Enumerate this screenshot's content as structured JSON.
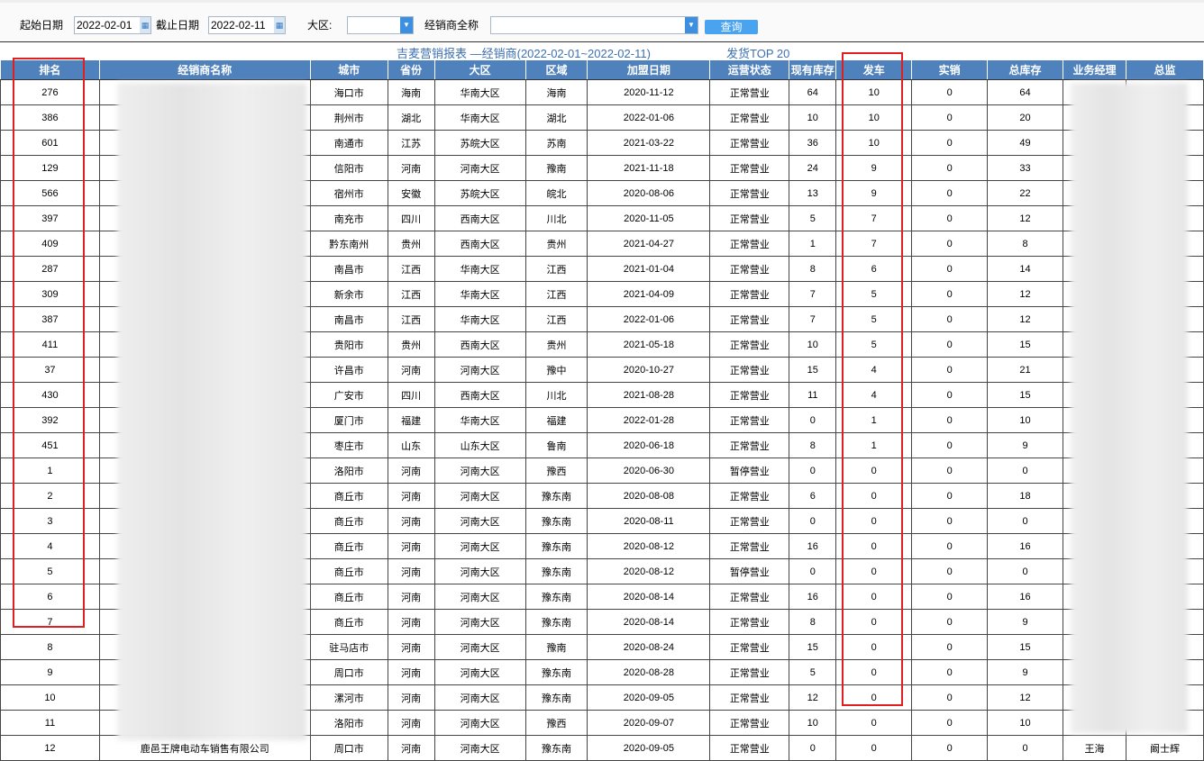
{
  "toolbar": {
    "start_label": "起始日期",
    "start_value": "2022-02-01",
    "end_label": "截止日期",
    "end_value": "2022-02-11",
    "region_label": "大区:",
    "region_value": "",
    "dealer_label": "经销商全称",
    "dealer_value": "",
    "query_button": "查询"
  },
  "report": {
    "title": "吉麦营销报表 —经销商(2022-02-01~2022-02-11)",
    "subtitle": "发货TOP 20"
  },
  "columns": [
    "排名",
    "经销商名称",
    "城市",
    "省份",
    "大区",
    "区域",
    "加盟日期",
    "运营状态",
    "现有库存",
    "发车",
    "实销",
    "总库存",
    "业务经理",
    "总监"
  ],
  "rows": [
    [
      "276",
      "",
      "海口市",
      "海南",
      "华南大区",
      "海南",
      "2020-11-12",
      "正常营业",
      "64",
      "10",
      "0",
      "64",
      "",
      ""
    ],
    [
      "386",
      "",
      "荆州市",
      "湖北",
      "华南大区",
      "湖北",
      "2022-01-06",
      "正常营业",
      "10",
      "10",
      "0",
      "20",
      "",
      ""
    ],
    [
      "601",
      "",
      "南通市",
      "江苏",
      "苏皖大区",
      "苏南",
      "2021-03-22",
      "正常营业",
      "36",
      "10",
      "0",
      "49",
      "",
      ""
    ],
    [
      "129",
      "",
      "信阳市",
      "河南",
      "河南大区",
      "豫南",
      "2021-11-18",
      "正常营业",
      "24",
      "9",
      "0",
      "33",
      "",
      ""
    ],
    [
      "566",
      "",
      "宿州市",
      "安徽",
      "苏皖大区",
      "皖北",
      "2020-08-06",
      "正常营业",
      "13",
      "9",
      "0",
      "22",
      "",
      ""
    ],
    [
      "397",
      "",
      "南充市",
      "四川",
      "西南大区",
      "川北",
      "2020-11-05",
      "正常营业",
      "5",
      "7",
      "0",
      "12",
      "",
      ""
    ],
    [
      "409",
      "",
      "黔东南州",
      "贵州",
      "西南大区",
      "贵州",
      "2021-04-27",
      "正常营业",
      "1",
      "7",
      "0",
      "8",
      "",
      ""
    ],
    [
      "287",
      "",
      "南昌市",
      "江西",
      "华南大区",
      "江西",
      "2021-01-04",
      "正常营业",
      "8",
      "6",
      "0",
      "14",
      "",
      ""
    ],
    [
      "309",
      "",
      "新余市",
      "江西",
      "华南大区",
      "江西",
      "2021-04-09",
      "正常营业",
      "7",
      "5",
      "0",
      "12",
      "",
      ""
    ],
    [
      "387",
      "",
      "南昌市",
      "江西",
      "华南大区",
      "江西",
      "2022-01-06",
      "正常营业",
      "7",
      "5",
      "0",
      "12",
      "",
      ""
    ],
    [
      "411",
      "",
      "贵阳市",
      "贵州",
      "西南大区",
      "贵州",
      "2021-05-18",
      "正常营业",
      "10",
      "5",
      "0",
      "15",
      "",
      ""
    ],
    [
      "37",
      "",
      "许昌市",
      "河南",
      "河南大区",
      "豫中",
      "2020-10-27",
      "正常营业",
      "15",
      "4",
      "0",
      "21",
      "",
      ""
    ],
    [
      "430",
      "",
      "广安市",
      "四川",
      "西南大区",
      "川北",
      "2021-08-28",
      "正常营业",
      "11",
      "4",
      "0",
      "15",
      "",
      ""
    ],
    [
      "392",
      "",
      "厦门市",
      "福建",
      "华南大区",
      "福建",
      "2022-01-28",
      "正常营业",
      "0",
      "1",
      "0",
      "10",
      "",
      ""
    ],
    [
      "451",
      "",
      "枣庄市",
      "山东",
      "山东大区",
      "鲁南",
      "2020-06-18",
      "正常营业",
      "8",
      "1",
      "0",
      "9",
      "",
      ""
    ],
    [
      "1",
      "",
      "洛阳市",
      "河南",
      "河南大区",
      "豫西",
      "2020-06-30",
      "暂停营业",
      "0",
      "0",
      "0",
      "0",
      "",
      ""
    ],
    [
      "2",
      "",
      "商丘市",
      "河南",
      "河南大区",
      "豫东南",
      "2020-08-08",
      "正常营业",
      "6",
      "0",
      "0",
      "18",
      "",
      ""
    ],
    [
      "3",
      "",
      "商丘市",
      "河南",
      "河南大区",
      "豫东南",
      "2020-08-11",
      "正常营业",
      "0",
      "0",
      "0",
      "0",
      "",
      ""
    ],
    [
      "4",
      "",
      "商丘市",
      "河南",
      "河南大区",
      "豫东南",
      "2020-08-12",
      "正常营业",
      "16",
      "0",
      "0",
      "16",
      "",
      ""
    ],
    [
      "5",
      "",
      "商丘市",
      "河南",
      "河南大区",
      "豫东南",
      "2020-08-12",
      "暂停营业",
      "0",
      "0",
      "0",
      "0",
      "",
      ""
    ],
    [
      "6",
      "",
      "商丘市",
      "河南",
      "河南大区",
      "豫东南",
      "2020-08-14",
      "正常营业",
      "16",
      "0",
      "0",
      "16",
      "",
      ""
    ],
    [
      "7",
      "",
      "商丘市",
      "河南",
      "河南大区",
      "豫东南",
      "2020-08-14",
      "正常营业",
      "8",
      "0",
      "0",
      "9",
      "",
      ""
    ],
    [
      "8",
      "",
      "驻马店市",
      "河南",
      "河南大区",
      "豫南",
      "2020-08-24",
      "正常营业",
      "15",
      "0",
      "0",
      "15",
      "",
      ""
    ],
    [
      "9",
      "",
      "周口市",
      "河南",
      "河南大区",
      "豫东南",
      "2020-08-28",
      "正常营业",
      "5",
      "0",
      "0",
      "9",
      "",
      ""
    ],
    [
      "10",
      "",
      "漯河市",
      "河南",
      "河南大区",
      "豫东南",
      "2020-09-05",
      "正常营业",
      "12",
      "0",
      "0",
      "12",
      "",
      ""
    ],
    [
      "11",
      "",
      "洛阳市",
      "河南",
      "河南大区",
      "豫西",
      "2020-09-07",
      "正常营业",
      "10",
      "0",
      "0",
      "10",
      "",
      ""
    ],
    [
      "12",
      "鹿邑王牌电动车销售有限公司",
      "周口市",
      "河南",
      "河南大区",
      "豫东南",
      "2020-09-05",
      "正常营业",
      "0",
      "0",
      "0",
      "0",
      "王海",
      "阚士辉"
    ]
  ],
  "colors": {
    "header_bg": "#4f81bd",
    "title": "#3e6fb0",
    "highlight_box": "#e02020",
    "button": "#4aa3ef"
  }
}
